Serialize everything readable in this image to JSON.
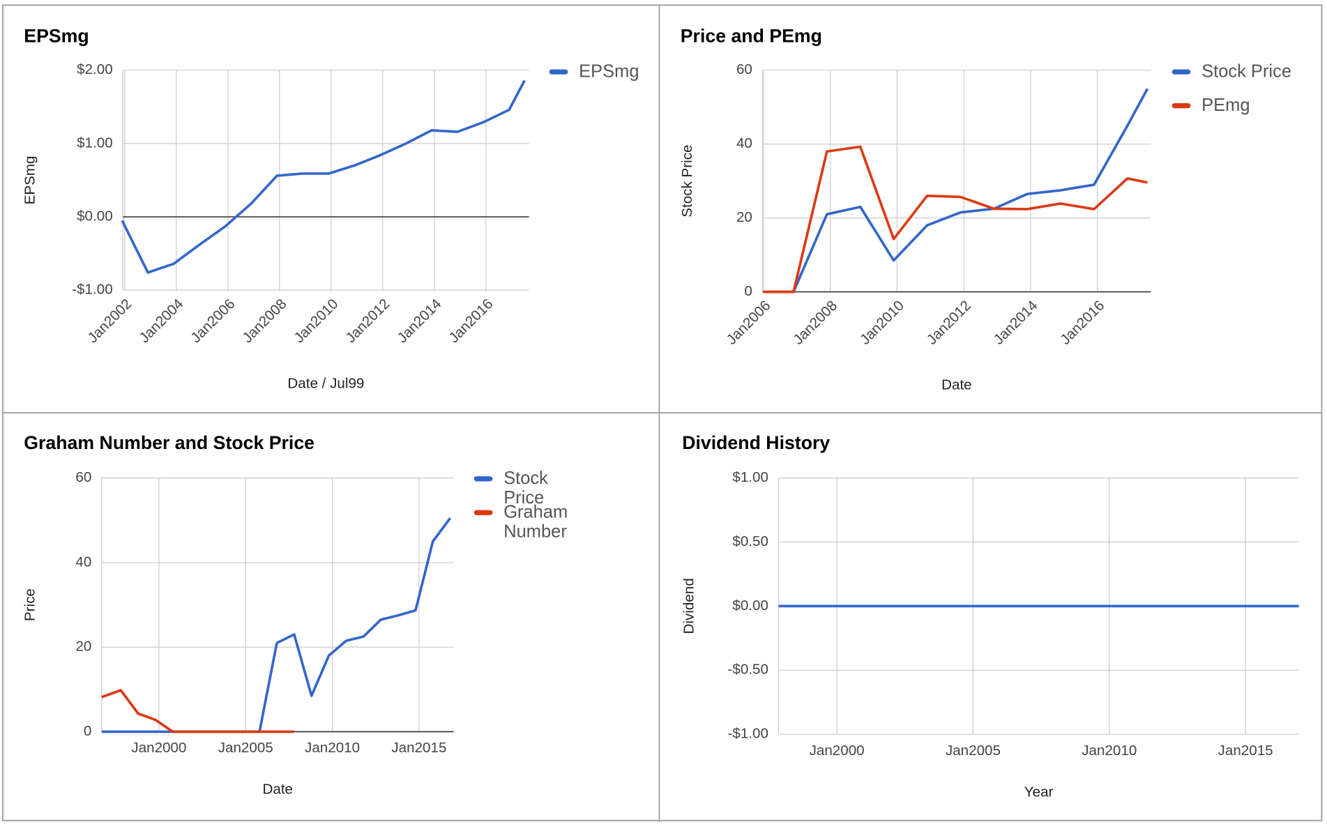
{
  "chart_data": [
    {
      "type": "line",
      "title": "EPSmg",
      "xlabel": "Date / Jul99",
      "ylabel": "EPSmg",
      "x": [
        2001.9,
        2002.9,
        2003.9,
        2004.9,
        2005.9,
        2006.9,
        2007.9,
        2008.9,
        2009.9,
        2010.9,
        2011.9,
        2012.9,
        2013.9,
        2014.9,
        2015.9,
        2016.9,
        2017.5
      ],
      "series": [
        {
          "name": "EPSmg",
          "color": "#3366cc",
          "values": [
            -0.05,
            -0.76,
            -0.64,
            -0.38,
            -0.13,
            0.18,
            0.56,
            0.59,
            0.59,
            0.7,
            0.84,
            1.0,
            1.18,
            1.16,
            1.29,
            1.46,
            1.86
          ]
        }
      ],
      "xlim": [
        2001.93,
        2017.67
      ],
      "ylim": [
        -1,
        2
      ],
      "xticks": [
        {
          "value": 2002,
          "label": "Jan2002"
        },
        {
          "value": 2004,
          "label": "Jan2004"
        },
        {
          "value": 2006,
          "label": "Jan2006"
        },
        {
          "value": 2008,
          "label": "Jan2008"
        },
        {
          "value": 2010,
          "label": "Jan2010"
        },
        {
          "value": 2012,
          "label": "Jan2012"
        },
        {
          "value": 2014,
          "label": "Jan2014"
        },
        {
          "value": 2016,
          "label": "Jan2016"
        }
      ],
      "yticks": [
        {
          "value": 2,
          "label": "$2.00"
        },
        {
          "value": 1,
          "label": "$1.00"
        },
        {
          "value": 0,
          "label": "$0.00"
        },
        {
          "value": -1,
          "label": "-$1.00"
        }
      ],
      "grid": true,
      "legend": "right"
    },
    {
      "type": "line",
      "title": "Price and PEmg",
      "xlabel": "Date",
      "ylabel": "Stock Price",
      "x": [
        2006,
        2006.9,
        2007.9,
        2008.9,
        2009.9,
        2010.9,
        2011.9,
        2012.9,
        2013.9,
        2014.9,
        2015.9,
        2016.9,
        2017.5
      ],
      "series": [
        {
          "name": "Stock Price",
          "color": "#3366cc",
          "values": [
            0,
            0,
            21,
            23,
            8.5,
            18,
            21.5,
            22.5,
            26.5,
            27.5,
            29,
            45,
            55
          ]
        },
        {
          "name": "PEmg",
          "color": "#dc3912",
          "values": [
            0,
            0,
            38,
            39.3,
            14.3,
            26,
            25.7,
            22.5,
            22.4,
            23.9,
            22.4,
            30.7,
            29.6
          ]
        }
      ],
      "xlim": [
        2005.97,
        2017.6
      ],
      "ylim": [
        0,
        60
      ],
      "xticks": [
        {
          "value": 2006,
          "label": "Jan2006"
        },
        {
          "value": 2008,
          "label": "Jan2008"
        },
        {
          "value": 2010,
          "label": "Jan2010"
        },
        {
          "value": 2012,
          "label": "Jan2012"
        },
        {
          "value": 2014,
          "label": "Jan2014"
        },
        {
          "value": 2016,
          "label": "Jan2016"
        }
      ],
      "yticks": [
        60,
        40,
        20,
        0
      ],
      "grid": true,
      "legend": "right"
    },
    {
      "type": "line",
      "title": "Graham Number and Stock Price",
      "xlabel": "Date",
      "ylabel": "Price",
      "x": [
        1996.7,
        1997.8,
        1998.8,
        1999.8,
        2000.8,
        2001.8,
        2002.8,
        2003.8,
        2004.8,
        2005.8,
        2006.8,
        2007.8,
        2008.8,
        2009.8,
        2010.8,
        2011.8,
        2012.8,
        2013.8,
        2014.8,
        2015.8,
        2016.8
      ],
      "series": [
        {
          "name": "Stock Price",
          "color": "#3366cc",
          "values": [
            0,
            0,
            0,
            0,
            0,
            0,
            0,
            0,
            0,
            0,
            21,
            23,
            8.5,
            18,
            21.5,
            22.5,
            26.5,
            27.5,
            28.7,
            45,
            50.5
          ]
        },
        {
          "name": "Graham Number",
          "color": "#dc3912",
          "values": [
            8.2,
            9.8,
            4.3,
            2.8,
            0,
            0,
            0,
            0,
            0,
            0,
            0,
            0,
            null,
            null,
            null,
            null,
            null,
            null,
            null,
            null,
            null
          ]
        }
      ],
      "xlim": [
        1996.7,
        2017.0
      ],
      "ylim": [
        0,
        60
      ],
      "xticks": [
        {
          "value": 2000,
          "label": "Jan2000"
        },
        {
          "value": 2005,
          "label": "Jan2005"
        },
        {
          "value": 2010,
          "label": "Jan2010"
        },
        {
          "value": 2015,
          "label": "Jan2015"
        }
      ],
      "yticks": [
        60,
        40,
        20,
        0
      ],
      "grid": true,
      "legend": "right"
    },
    {
      "type": "line",
      "title": "Dividend History",
      "xlabel": "Year",
      "ylabel": "Dividend",
      "x": [
        1997.86,
        2016.96
      ],
      "series": [
        {
          "color": "#3366cc",
          "values": [
            0,
            0
          ]
        }
      ],
      "xlim": [
        1997.86,
        2016.96
      ],
      "ylim": [
        -1,
        1
      ],
      "xticks": [
        {
          "value": 2000,
          "label": "Jan2000"
        },
        {
          "value": 2005,
          "label": "Jan2005"
        },
        {
          "value": 2010,
          "label": "Jan2010"
        },
        {
          "value": 2015,
          "label": "Jan2015"
        }
      ],
      "yticks": [
        {
          "value": 1,
          "label": "$1.00"
        },
        {
          "value": 0.5,
          "label": "$0.50"
        },
        {
          "value": 0,
          "label": "$0.00"
        },
        {
          "value": -0.5,
          "label": "-$0.50"
        },
        {
          "value": -1,
          "label": "-$1.00"
        }
      ],
      "grid": true,
      "legend": "none"
    }
  ]
}
